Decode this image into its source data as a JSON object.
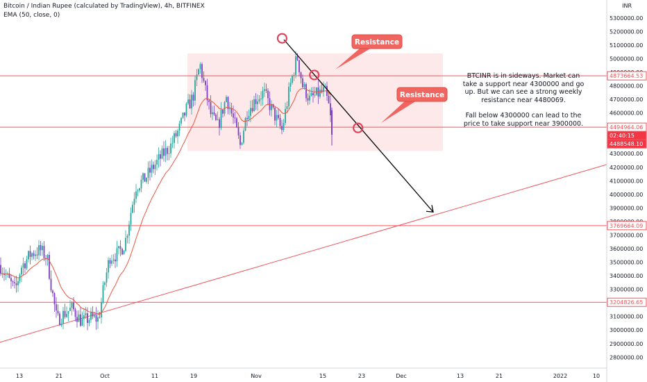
{
  "header": {
    "title": "Bitcoin / Indian Rupee (calculated by TradingView), 4h, BITFINEX",
    "indicator": "EMA (50, close, 0)"
  },
  "currency_label": "INR",
  "note": {
    "line1": "BTCINR is in sideways. Market can take a support near 4300000 and go up. But we can see a strong weekly resistance near 4480069.",
    "line2": "Fall below 4300000 can lead to the price to take support near 3900000."
  },
  "callouts": [
    {
      "label": "Resistance"
    },
    {
      "label": "Resistance"
    }
  ],
  "colors": {
    "up": "#26a69a",
    "down": "#7a3fc4",
    "ema": "#e8553e",
    "level_line": "#f0555b",
    "zone_fill": "#fde5e6",
    "callout_fill": "#f0655f",
    "circle": "#e0415a",
    "arrow": "#000000",
    "axis_text": "#131722"
  },
  "chart_data": {
    "type": "candlestick",
    "xlabel": "",
    "ylabel": "",
    "x_ticks": [
      "13",
      "21",
      "Oct",
      "11",
      "19",
      "Nov",
      "15",
      "23",
      "Dec",
      "13",
      "21",
      "2022",
      "10"
    ],
    "y_ticks": [
      2800000,
      2900000,
      3000000,
      3100000,
      3200000,
      3300000,
      3400000,
      3500000,
      3600000,
      3700000,
      3800000,
      3900000,
      4000000,
      4100000,
      4200000,
      4300000,
      4400000,
      4500000,
      4600000,
      4700000,
      4800000,
      4900000,
      5000000,
      5100000,
      5200000,
      5300000
    ],
    "ylim": [
      2730000,
      5330000
    ],
    "horizontal_levels": [
      {
        "value": 4873664.53,
        "label": "4873664.53"
      },
      {
        "value": 4494964.06,
        "label": "4494964.06"
      },
      {
        "value": 3769664.09,
        "label": "3769664.09"
      },
      {
        "value": 3204826.65,
        "label": "3204826.65"
      }
    ],
    "price_boxes": [
      {
        "label": "4494964.06",
        "style": "line"
      },
      {
        "label": "02:40:15",
        "style": "solid"
      },
      {
        "label": "4488548.10",
        "style": "solid"
      }
    ],
    "sideways_zone": {
      "x_start": "19",
      "x_end": "Dec",
      "y_low": 4320000,
      "y_high": 5040000
    },
    "trendline": {
      "from": [
        0,
        2910000
      ],
      "to": [
        1,
        4220000
      ]
    },
    "projection_arrow": {
      "from": [
        0.468,
        5140000
      ],
      "to": [
        0.714,
        3870000
      ]
    },
    "resistance_marks": [
      {
        "x": 0.465,
        "value": 5150000
      },
      {
        "x": 0.518,
        "value": 4880000
      },
      {
        "x": 0.59,
        "value": 4490000
      }
    ],
    "price_path": [
      {
        "t": 0,
        "p": 3480000
      },
      {
        "t": 10,
        "p": 3390000
      },
      {
        "t": 22,
        "p": 3290000
      },
      {
        "t": 30,
        "p": 3460000
      },
      {
        "t": 44,
        "p": 3560000
      },
      {
        "t": 58,
        "p": 3590000
      },
      {
        "t": 68,
        "p": 3530000
      },
      {
        "t": 74,
        "p": 3320000
      },
      {
        "t": 82,
        "p": 3070000
      },
      {
        "t": 92,
        "p": 3120000
      },
      {
        "t": 104,
        "p": 3160000
      },
      {
        "t": 118,
        "p": 3060000
      },
      {
        "t": 130,
        "p": 3090000
      },
      {
        "t": 142,
        "p": 3080000
      },
      {
        "t": 150,
        "p": 3330000
      },
      {
        "t": 158,
        "p": 3540000
      },
      {
        "t": 170,
        "p": 3560000
      },
      {
        "t": 180,
        "p": 3640000
      },
      {
        "t": 188,
        "p": 3860000
      },
      {
        "t": 196,
        "p": 4060000
      },
      {
        "t": 208,
        "p": 4110000
      },
      {
        "t": 222,
        "p": 4210000
      },
      {
        "t": 234,
        "p": 4290000
      },
      {
        "t": 246,
        "p": 4360000
      },
      {
        "t": 258,
        "p": 4480000
      },
      {
        "t": 268,
        "p": 4620000
      },
      {
        "t": 278,
        "p": 4720000
      },
      {
        "t": 288,
        "p": 4960000
      },
      {
        "t": 296,
        "p": 4760000
      },
      {
        "t": 304,
        "p": 4580000
      },
      {
        "t": 314,
        "p": 4500000
      },
      {
        "t": 326,
        "p": 4720000
      },
      {
        "t": 338,
        "p": 4520000
      },
      {
        "t": 346,
        "p": 4360000
      },
      {
        "t": 356,
        "p": 4610000
      },
      {
        "t": 368,
        "p": 4700000
      },
      {
        "t": 380,
        "p": 4750000
      },
      {
        "t": 392,
        "p": 4620000
      },
      {
        "t": 406,
        "p": 4470000
      },
      {
        "t": 418,
        "p": 4800000
      },
      {
        "t": 428,
        "p": 5020000
      },
      {
        "t": 436,
        "p": 4800000
      },
      {
        "t": 446,
        "p": 4700000
      },
      {
        "t": 458,
        "p": 4740000
      },
      {
        "t": 468,
        "p": 4760000
      },
      {
        "t": 474,
        "p": 4640000
      },
      {
        "t": 478,
        "p": 4480000
      }
    ]
  }
}
